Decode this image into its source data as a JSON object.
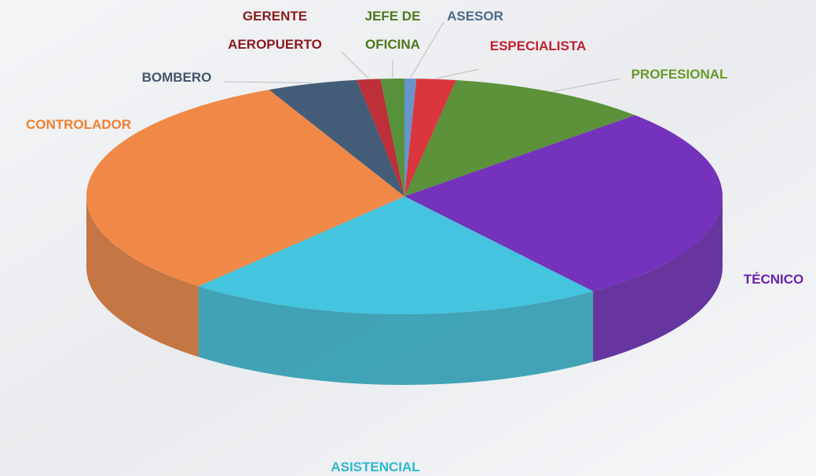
{
  "chart_data": {
    "type": "pie",
    "categories": [
      "ASESOR",
      "ESPECIALISTA",
      "PROFESIONAL",
      "TÉCNICO",
      "ASISTENCIAL",
      "CONTROLADOR",
      "BOMBERO",
      "GERENTE\nAEROPUERTO",
      "JEFE DE\nOFICINA"
    ],
    "values": [
      0.6,
      2.0,
      10.3,
      27.0,
      21.3,
      31.8,
      4.6,
      1.2,
      1.2
    ],
    "colors": [
      "#5b8cc8",
      "#d8262e",
      "#4e8a2a",
      "#6a22b8",
      "#35c0dc",
      "#f08038",
      "#34506e",
      "#b8202a",
      "#4a8a2a"
    ],
    "label_colors": [
      "#4a6a8a",
      "#c0202e",
      "#6a9a2a",
      "#6a1fb0",
      "#2ab8d0",
      "#f08030",
      "#44546a",
      "#8b1a1a",
      "#4a7a1a"
    ]
  }
}
